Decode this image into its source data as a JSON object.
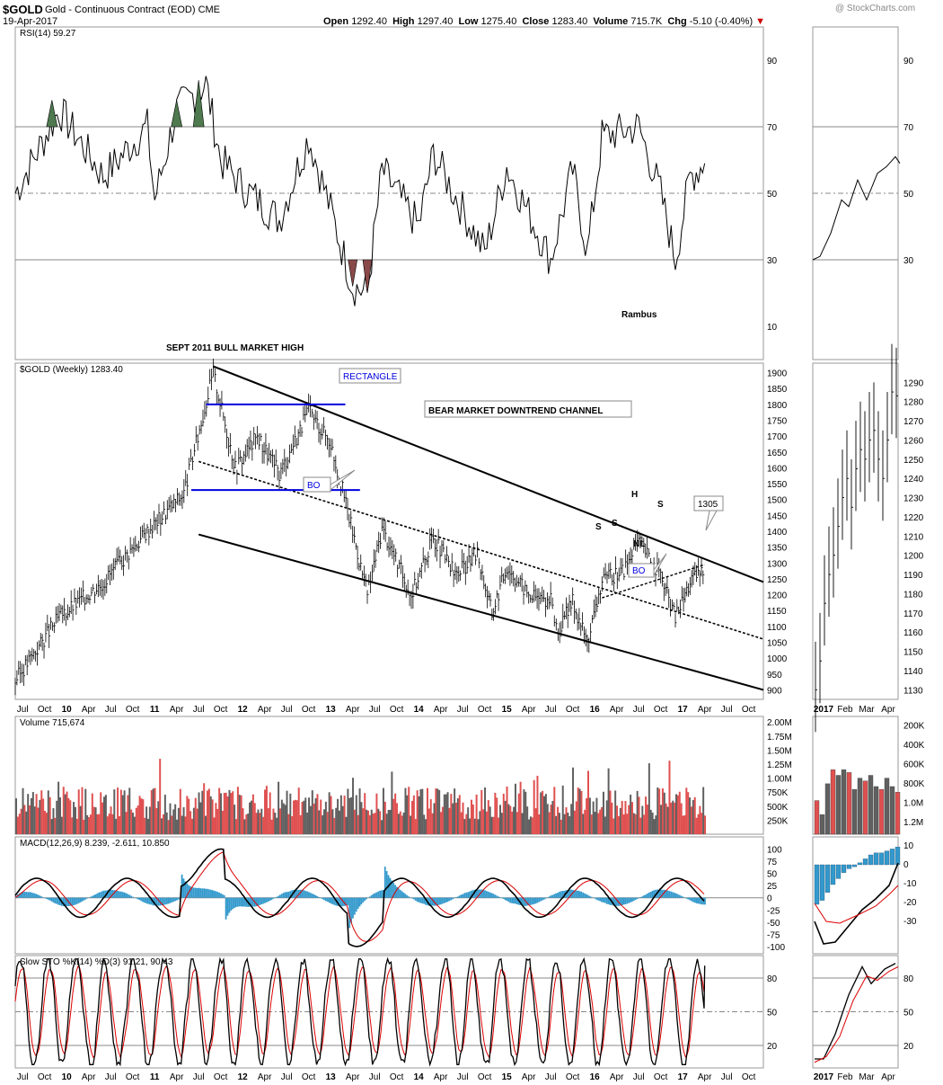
{
  "header": {
    "symbol": "$GOLD",
    "name": "Gold - Continuous Contract (EOD)",
    "exchange": "CME",
    "date": "19-Apr-2017",
    "watermark": "@ StockCharts.com",
    "open_label": "Open",
    "open": "1292.40",
    "high_label": "High",
    "high": "1297.40",
    "low_label": "Low",
    "low": "1275.40",
    "close_label": "Close",
    "close": "1283.40",
    "volume_label": "Volume",
    "volume": "715.7K",
    "chg_label": "Chg",
    "chg": "-5.10 (-0.40%)"
  },
  "colors": {
    "up": "#e05050",
    "down": "#606060",
    "rsi_high": "#4f7a4f",
    "rsi_low": "#8a4a4a",
    "channel": "#000000",
    "rectangle": "#0000dd",
    "macd_hist": "#3399cc",
    "signal": "#dd0000"
  },
  "panels": {
    "rsi": {
      "label": "RSI(14) 59.27",
      "ticks": [
        "90",
        "70",
        "50",
        "30",
        "10"
      ],
      "zoom_ticks": [
        "90",
        "70",
        "50",
        "30"
      ]
    },
    "price": {
      "label": "$GOLD (Weekly) 1283.40",
      "ticks": [
        "1900",
        "1850",
        "1800",
        "1750",
        "1700",
        "1650",
        "1600",
        "1550",
        "1500",
        "1450",
        "1400",
        "1350",
        "1300",
        "1250",
        "1200",
        "1150",
        "1100",
        "1050",
        "1000",
        "950",
        "900"
      ],
      "zoom_ticks": [
        "1290",
        "1280",
        "1270",
        "1260",
        "1250",
        "1240",
        "1230",
        "1220",
        "1210",
        "1200",
        "1190",
        "1180",
        "1170",
        "1160",
        "1150",
        "1140",
        "1130"
      ]
    },
    "volume": {
      "label": "Volume 715,674",
      "ticks": [
        "2.00M",
        "1.75M",
        "1.50M",
        "1.25M",
        "1.00M",
        "750K",
        "500K",
        "250K"
      ],
      "zoom_ticks": [
        "1.2M",
        "1.0M",
        "800K",
        "600K",
        "400K",
        "200K"
      ]
    },
    "macd": {
      "label": "MACD(12,26,9) 8.239, -2.611, 10.850",
      "ticks": [
        "100",
        "75",
        "50",
        "25",
        "0",
        "-25",
        "-50",
        "-75",
        "-100"
      ],
      "zoom_ticks": [
        "10",
        "0",
        "-10",
        "-20",
        "-30"
      ]
    },
    "sto": {
      "label": "Slow STO %K(14) %D(3) 91.21, 90.43",
      "ticks": [
        "80",
        "50",
        "20"
      ],
      "zoom_ticks": [
        "80",
        "50",
        "20"
      ]
    }
  },
  "x_axis": {
    "labels": [
      "Jul",
      "Oct",
      "10",
      "Apr",
      "Jul",
      "Oct",
      "11",
      "Apr",
      "Jul",
      "Oct",
      "12",
      "Apr",
      "Jul",
      "Oct",
      "13",
      "Apr",
      "Jul",
      "Oct",
      "14",
      "Apr",
      "Jul",
      "Oct",
      "15",
      "Apr",
      "Jul",
      "Oct",
      "16",
      "Apr",
      "Jul",
      "Oct",
      "17",
      "Apr",
      "Jul",
      "Oct"
    ],
    "zoom_labels": [
      "2017",
      "Feb",
      "Mar",
      "Apr"
    ]
  },
  "annotations": {
    "sept_high": "SEPT 2011 BULL MARKET HIGH",
    "rambus": "Rambus",
    "rectangle": "RECTANGLE",
    "channel": "BEAR MARKET DOWNTREND  CHANNEL",
    "bo1": "BO",
    "bo2": "BO",
    "s1": "S",
    "s2": "S",
    "h": "H",
    "s3": "S",
    "nl": "NL",
    "target": "1305"
  },
  "chart_data": {
    "type": "line",
    "title": "$GOLD (Weekly) 1283.40",
    "x_range": [
      "2009-06",
      "2017-12"
    ],
    "price_range": [
      870,
      1930
    ],
    "price_keypoints": [
      {
        "date": "2009-06",
        "price": 930
      },
      {
        "date": "2009-12",
        "price": 1130
      },
      {
        "date": "2010-06",
        "price": 1240
      },
      {
        "date": "2010-12",
        "price": 1400
      },
      {
        "date": "2011-05",
        "price": 1520
      },
      {
        "date": "2011-09",
        "price": 1900
      },
      {
        "date": "2011-12",
        "price": 1600
      },
      {
        "date": "2012-03",
        "price": 1700
      },
      {
        "date": "2012-06",
        "price": 1580
      },
      {
        "date": "2012-10",
        "price": 1780
      },
      {
        "date": "2013-01",
        "price": 1680
      },
      {
        "date": "2013-04",
        "price": 1400
      },
      {
        "date": "2013-06",
        "price": 1200
      },
      {
        "date": "2013-08",
        "price": 1410
      },
      {
        "date": "2013-12",
        "price": 1200
      },
      {
        "date": "2014-03",
        "price": 1380
      },
      {
        "date": "2014-06",
        "price": 1260
      },
      {
        "date": "2014-09",
        "price": 1330
      },
      {
        "date": "2014-11",
        "price": 1140
      },
      {
        "date": "2015-01",
        "price": 1290
      },
      {
        "date": "2015-04",
        "price": 1200
      },
      {
        "date": "2015-07",
        "price": 1180
      },
      {
        "date": "2015-08",
        "price": 1080
      },
      {
        "date": "2015-10",
        "price": 1180
      },
      {
        "date": "2015-12",
        "price": 1050
      },
      {
        "date": "2016-02",
        "price": 1240
      },
      {
        "date": "2016-05",
        "price": 1280
      },
      {
        "date": "2016-07",
        "price": 1370
      },
      {
        "date": "2016-10",
        "price": 1260
      },
      {
        "date": "2016-12",
        "price": 1130
      },
      {
        "date": "2017-02",
        "price": 1240
      },
      {
        "date": "2017-04",
        "price": 1283
      }
    ],
    "downtrend_upper": [
      {
        "date": "2011-09",
        "price": 1920
      },
      {
        "date": "2017-12",
        "price": 1240
      }
    ],
    "downtrend_lower": [
      {
        "date": "2011-07",
        "price": 1390
      },
      {
        "date": "2017-12",
        "price": 900
      }
    ],
    "dashed_midline": [
      {
        "date": "2011-07",
        "price": 1620
      },
      {
        "date": "2017-12",
        "price": 1060
      }
    ],
    "rectangle_top": {
      "from": "2011-08",
      "to": "2013-03",
      "price": 1800
    },
    "rectangle_bottom": {
      "from": "2011-06",
      "to": "2013-05",
      "price": 1530
    },
    "neckline": [
      {
        "date": "2016-02",
        "price": 1190
      },
      {
        "date": "2017-04",
        "price": 1295
      }
    ],
    "rsi_keypoints": [
      {
        "date": "2009-06",
        "v": 50
      },
      {
        "date": "2009-12",
        "v": 75
      },
      {
        "date": "2010-06",
        "v": 55
      },
      {
        "date": "2010-12",
        "v": 70
      },
      {
        "date": "2011-01",
        "v": 48
      },
      {
        "date": "2011-04",
        "v": 75
      },
      {
        "date": "2011-08",
        "v": 83
      },
      {
        "date": "2011-10",
        "v": 60
      },
      {
        "date": "2012-01",
        "v": 52
      },
      {
        "date": "2012-06",
        "v": 42
      },
      {
        "date": "2012-10",
        "v": 67
      },
      {
        "date": "2013-01",
        "v": 45
      },
      {
        "date": "2013-04",
        "v": 22
      },
      {
        "date": "2013-06",
        "v": 20
      },
      {
        "date": "2013-08",
        "v": 57
      },
      {
        "date": "2014-01",
        "v": 40
      },
      {
        "date": "2014-03",
        "v": 62
      },
      {
        "date": "2014-10",
        "v": 32
      },
      {
        "date": "2015-01",
        "v": 58
      },
      {
        "date": "2015-07",
        "v": 30
      },
      {
        "date": "2015-10",
        "v": 57
      },
      {
        "date": "2015-12",
        "v": 32
      },
      {
        "date": "2016-02",
        "v": 67
      },
      {
        "date": "2016-07",
        "v": 70
      },
      {
        "date": "2016-10",
        "v": 50
      },
      {
        "date": "2016-12",
        "v": 30
      },
      {
        "date": "2017-02",
        "v": 55
      },
      {
        "date": "2017-04",
        "v": 59
      }
    ],
    "sto_current": {
      "k": 91.21,
      "d": 90.43
    },
    "macd_current": {
      "macd": 8.239,
      "signal": -2.611,
      "hist": 10.85
    },
    "volume_current": 715674
  }
}
